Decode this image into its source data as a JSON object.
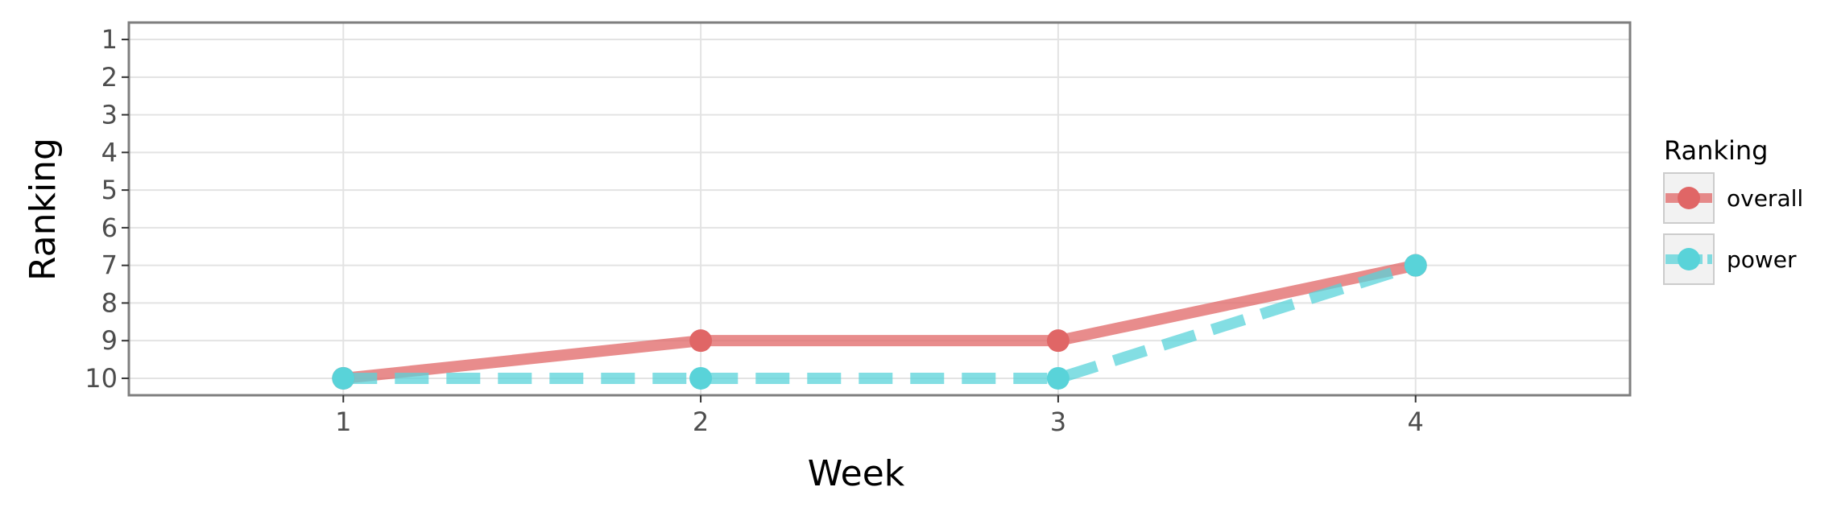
{
  "chart_data": {
    "type": "line",
    "xlabel": "Week",
    "ylabel": "Ranking",
    "x": [
      1,
      2,
      3,
      4
    ],
    "xlim": [
      0.4,
      4.6
    ],
    "ylim": [
      10.45,
      0.55
    ],
    "y_reversed": true,
    "x_ticks": [
      "1",
      "2",
      "3",
      "4"
    ],
    "y_ticks": [
      "1",
      "2",
      "3",
      "4",
      "5",
      "6",
      "7",
      "8",
      "9",
      "10"
    ],
    "grid": true,
    "legend": {
      "title": "Ranking",
      "placement": "right"
    },
    "series": [
      {
        "name": "overall",
        "values": [
          10,
          9,
          9,
          7
        ],
        "color": "#e06666",
        "line_style": "solid"
      },
      {
        "name": "power",
        "values": [
          10,
          10,
          10,
          7
        ],
        "color": "#59d3d9",
        "line_style": "dashed"
      }
    ]
  }
}
